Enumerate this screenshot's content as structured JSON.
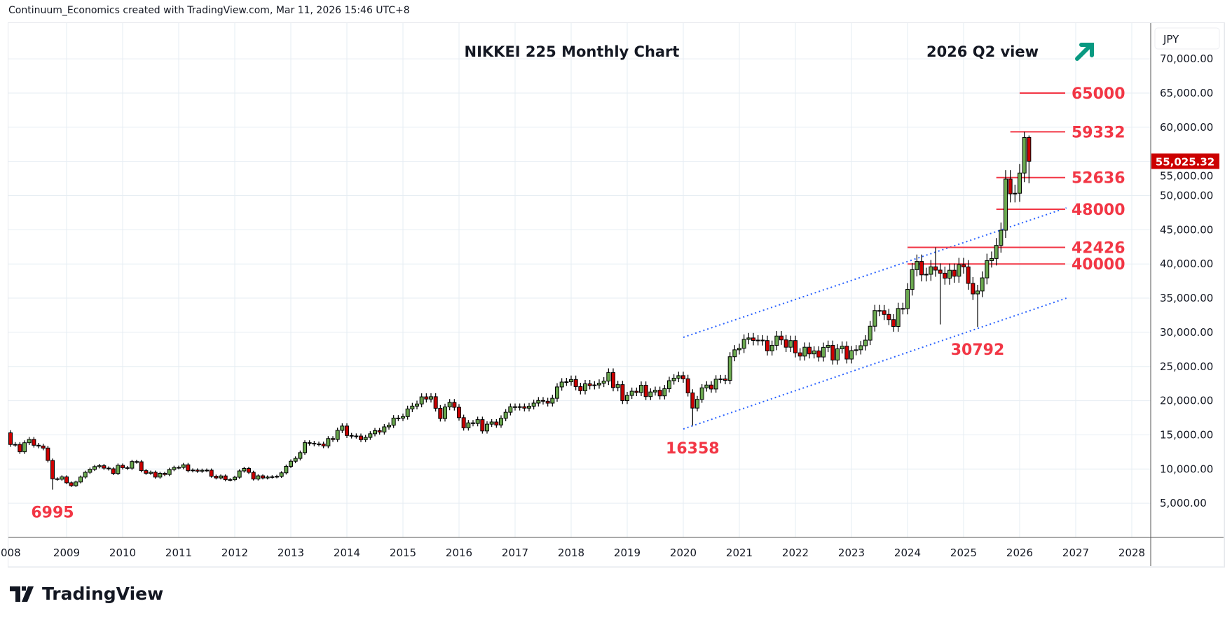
{
  "header": {
    "caption": "Continuum_Economics created with TradingView.com, Mar 11, 2026 15:46 UTC+8"
  },
  "brand": {
    "name": "TradingView"
  },
  "price_axis": {
    "currency": "JPY",
    "last_price_label": "55,025.32",
    "last_price_color": "#cc0000"
  },
  "chart_data": {
    "type": "candlestick",
    "title": "NIKKEI 225 Monthly Chart",
    "subtitle": "2026 Q2 view",
    "outlook_icon": "arrow-up-right-icon",
    "outlook_color": "#089981",
    "start_month": "2008-01",
    "closes": [
      13592,
      13603,
      12525,
      13849,
      14338,
      13481,
      13376,
      13072,
      11259,
      8576,
      8512,
      8859,
      7994,
      7568,
      8109,
      8828,
      9522,
      9958,
      10356,
      10492,
      10133,
      10034,
      9345,
      10546,
      10198,
      10126,
      11089,
      11057,
      9768,
      9382,
      9537,
      8824,
      9369,
      9202,
      9937,
      10228,
      10237,
      10624,
      9755,
      9849,
      9693,
      9816,
      9833,
      8955,
      8700,
      8988,
      8434,
      8455,
      8802,
      9723,
      10083,
      9520,
      8542,
      9006,
      8695,
      8839,
      8870,
      8928,
      9446,
      10395,
      11138,
      11559,
      12397,
      13860,
      13774,
      13677,
      13668,
      13389,
      14455,
      14327,
      15661,
      16291,
      14914,
      14841,
      14827,
      14304,
      14632,
      15162,
      15620,
      15425,
      16173,
      16414,
      17459,
      17450,
      17674,
      18797,
      19207,
      19520,
      20563,
      20236,
      20585,
      18890,
      17388,
      19083,
      19747,
      19034,
      17518,
      16027,
      16759,
      16666,
      17235,
      15576,
      16569,
      16887,
      16450,
      17425,
      18308,
      19114,
      19041,
      19119,
      18909,
      19197,
      19651,
      20033,
      19925,
      19646,
      20356,
      22012,
      22724,
      22765,
      23098,
      22068,
      21454,
      22468,
      22202,
      22305,
      22554,
      22865,
      24120,
      21920,
      22351,
      20015,
      20773,
      21385,
      21206,
      22259,
      20601,
      21276,
      21521,
      20704,
      21756,
      22927,
      23294,
      23657,
      23205,
      21143,
      18917,
      20194,
      21878,
      22288,
      21710,
      23140,
      23185,
      22977,
      26434,
      27444,
      27663,
      28966,
      29179,
      28813,
      28860,
      28792,
      27284,
      28090,
      29453,
      28893,
      27822,
      28792,
      27002,
      26527,
      27821,
      26848,
      27280,
      26393,
      27802,
      28092,
      25937,
      27587,
      27969,
      26095,
      27327,
      27446,
      28041,
      28856,
      30888,
      33189,
      33172,
      32619,
      31858,
      30859,
      33487,
      33464,
      36287,
      39166,
      40369,
      38406,
      38488,
      39583,
      39102,
      38648,
      37920,
      39081,
      38208,
      39895,
      39572,
      37156,
      35618,
      36045,
      37965,
      40487,
      40800,
      42718,
      44933,
      52411,
      50254,
      50339,
      53300,
      58500,
      55025
    ],
    "first_open": 15300,
    "extremes": {
      "2008-10": {
        "low": 6995
      },
      "2020-03": {
        "low": 16358
      },
      "2024-07": {
        "high": 42426
      },
      "2024-08": {
        "low": 31156
      },
      "2025-04": {
        "low": 30792
      },
      "2026-02": {
        "high": 59332
      },
      "2026-03": {
        "low": 51800,
        "high": 58800
      }
    },
    "x_ticks": [
      "008",
      "2009",
      "2010",
      "2011",
      "2012",
      "2013",
      "2014",
      "2015",
      "2016",
      "2017",
      "2018",
      "2019",
      "2020",
      "2021",
      "2022",
      "2023",
      "2024",
      "2025",
      "2026",
      "2027",
      "2028"
    ],
    "y_ticks": [
      "5,000.00",
      "10,000.00",
      "15,000.00",
      "20,000.00",
      "25,000.00",
      "30,000.00",
      "35,000.00",
      "40,000.00",
      "45,000.00",
      "50,000.00",
      "55,000.00",
      "60,000.00",
      "65,000.00",
      "70,000.00"
    ],
    "ylim": [
      0,
      75000
    ],
    "xlim": [
      "2008-01",
      "2028-09"
    ],
    "levels": [
      {
        "label": "65000",
        "value": 65000,
        "from": "2026-01"
      },
      {
        "label": "59332",
        "value": 59332,
        "from": "2025-11"
      },
      {
        "label": "52636",
        "value": 52636,
        "from": "2025-08"
      },
      {
        "label": "48000",
        "value": 48000,
        "from": "2025-08"
      },
      {
        "label": "42426",
        "value": 42426,
        "from": "2024-01"
      },
      {
        "label": "40000",
        "value": 40000,
        "from": "2024-01"
      }
    ],
    "annotations": [
      {
        "label": "6995",
        "month": "2008-10",
        "value": 6995
      },
      {
        "label": "16358",
        "month": "2020-03",
        "value": 16358
      },
      {
        "label": "30792",
        "month": "2025-04",
        "value": 30792
      }
    ],
    "channel": {
      "upper": [
        [
          "2020-01",
          29270
        ],
        [
          "2026-11",
          48200
        ]
      ],
      "lower": [
        [
          "2020-01",
          15860
        ],
        [
          "2026-11",
          35000
        ]
      ]
    },
    "colors": {
      "up": "#6aa84f",
      "down": "#cc0000",
      "level": "#f23645",
      "channel": "#2962ff",
      "grid": "#e6edf3"
    }
  }
}
